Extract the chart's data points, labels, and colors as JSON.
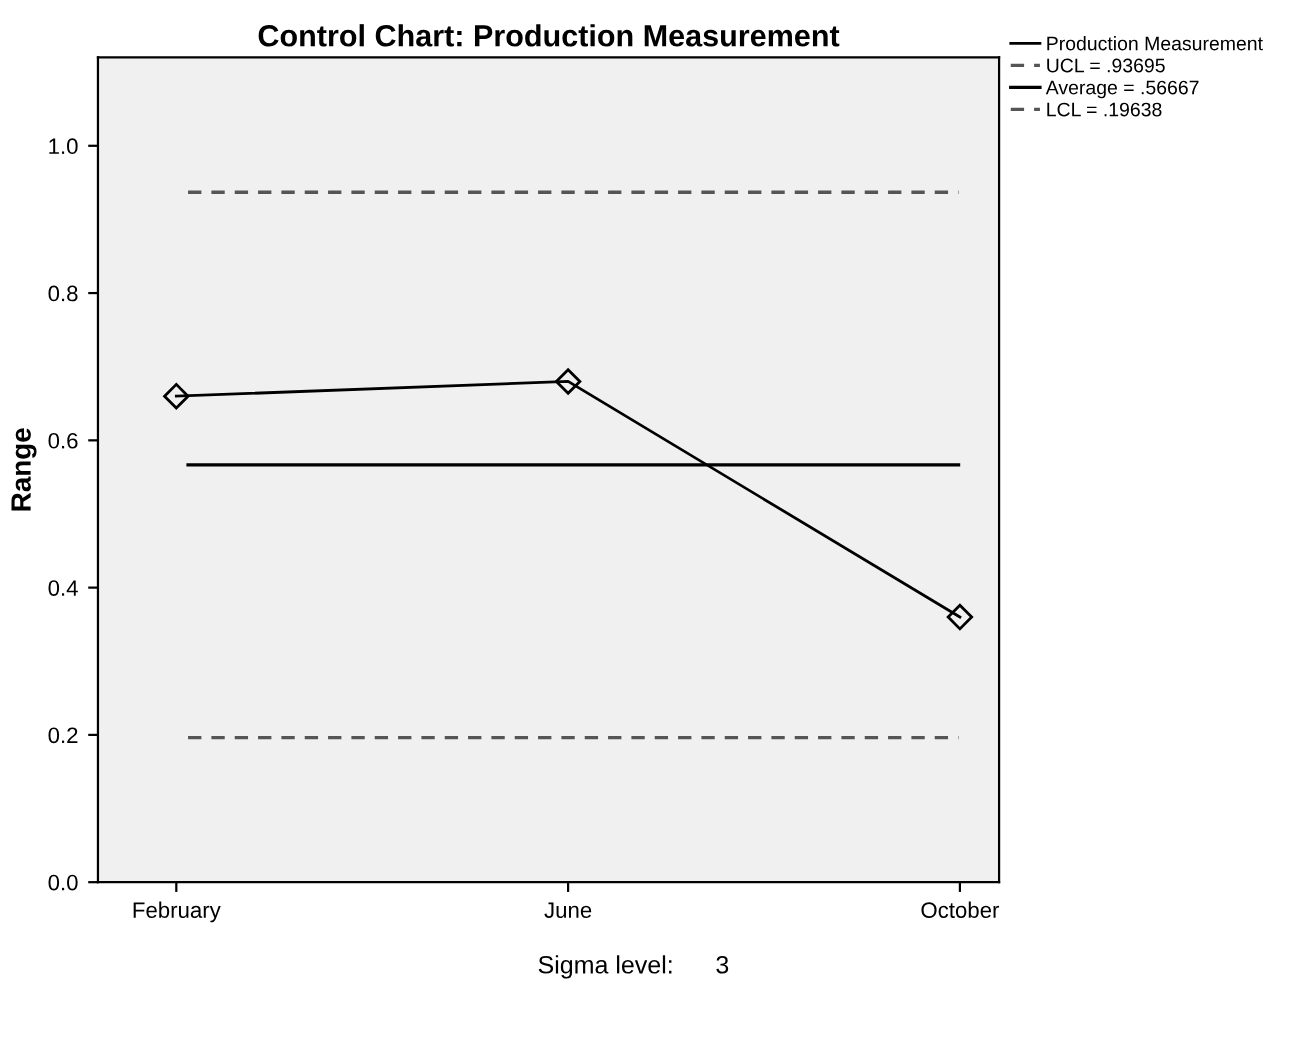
{
  "chart_data": {
    "type": "line",
    "title": "Control Chart: Production Measurement",
    "ylabel": "Range",
    "categories": [
      "February",
      "June",
      "October"
    ],
    "series": [
      {
        "name": "Production Measurement",
        "color": "#000000",
        "values": [
          0.66,
          0.68,
          0.36
        ]
      }
    ],
    "marker": "diamond",
    "line_style": "solid",
    "ylim": [
      0,
      1.12
    ],
    "yticks": [
      {
        "value": 0,
        "label": "0.0"
      },
      0.2,
      0.4,
      0.6,
      0.8,
      {
        "value": 1,
        "label": "1.0"
      }
    ],
    "ref_lines": [
      {
        "axis": "y",
        "value": 0.93695,
        "label": "UCL = .93695",
        "color": "#555555",
        "line_style": "dashed"
      },
      {
        "axis": "y",
        "value": 0.56667,
        "label": "Average = .56667",
        "color": "#000000",
        "line_style": "solid"
      },
      {
        "axis": "y",
        "value": 0.19638,
        "label": "LCL = .19638",
        "color": "#555555",
        "line_style": "dashed"
      }
    ],
    "annotations": [
      "Sigma level:      3"
    ],
    "grid": false,
    "legend": "top right"
  }
}
